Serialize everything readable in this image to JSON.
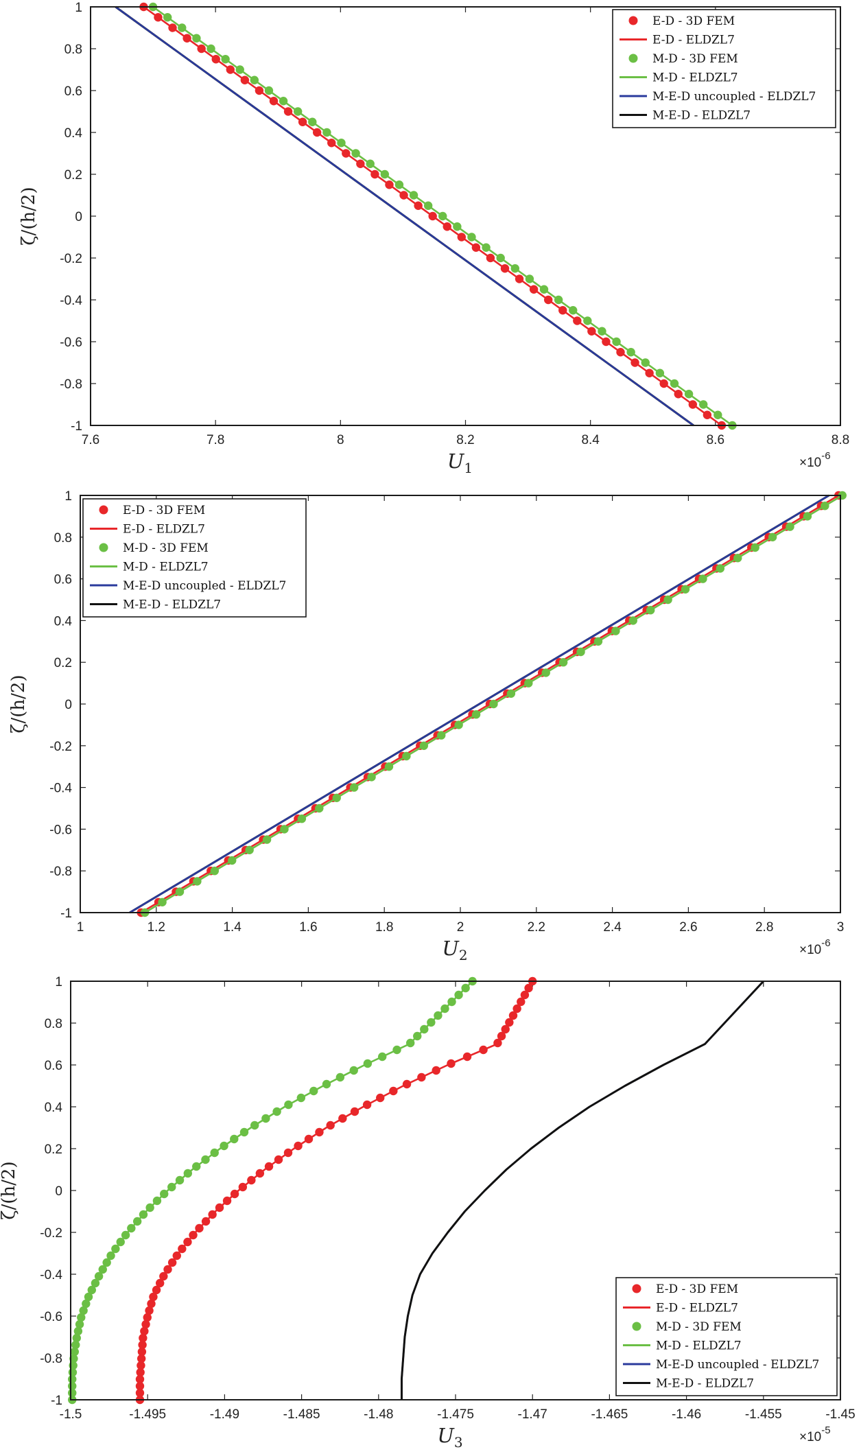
{
  "colors": {
    "ed": "#e8272a",
    "md": "#6bbf45",
    "uncoupled": "#2a3a9c",
    "med": "#111111"
  },
  "chart_data": [
    {
      "type": "line",
      "xlabel": "U",
      "xlabel_sub": "1",
      "ylabel": "ζ/(h/2)",
      "x_multiplier": "×10",
      "x_multiplier_exp": "-6",
      "xlim": [
        7.6,
        8.8
      ],
      "ylim": [
        -1,
        1
      ],
      "xticks": [
        "7.6",
        "7.8",
        "8",
        "8.2",
        "8.4",
        "8.6",
        "8.8"
      ],
      "yticks": [
        "-1",
        "-0.8",
        "-0.6",
        "-0.4",
        "-0.2",
        "0",
        "0.2",
        "0.4",
        "0.6",
        "0.8",
        "1"
      ],
      "legend_position": "top-right",
      "series": [
        {
          "name": "E-D - 3D FEM",
          "kind": "markers",
          "color": "ed",
          "x": [
            8.61,
            7.685
          ],
          "y": [
            -1,
            1
          ],
          "n_markers": 41
        },
        {
          "name": "E-D - ELDZL7",
          "kind": "line",
          "color": "ed",
          "x": [
            8.61,
            7.685
          ],
          "y": [
            -1,
            1
          ]
        },
        {
          "name": "M-D - 3D FEM",
          "kind": "markers",
          "color": "md",
          "x": [
            8.627,
            7.7
          ],
          "y": [
            -1,
            1
          ],
          "n_markers": 41
        },
        {
          "name": "M-D - ELDZL7",
          "kind": "line",
          "color": "md",
          "x": [
            8.627,
            7.7
          ],
          "y": [
            -1,
            1
          ]
        },
        {
          "name": "M-E-D uncoupled - ELDZL7",
          "kind": "line",
          "color": "uncoupled",
          "x": [
            8.565,
            7.64
          ],
          "y": [
            -1,
            1
          ]
        },
        {
          "name": "M-E-D - ELDZL7",
          "kind": "line",
          "color": "med",
          "x": [
            8.565,
            7.64
          ],
          "y": [
            -1,
            1
          ]
        }
      ]
    },
    {
      "type": "line",
      "xlabel": "U",
      "xlabel_sub": "2",
      "ylabel": "ζ/(h/2)",
      "x_multiplier": "×10",
      "x_multiplier_exp": "-6",
      "xlim": [
        1,
        3
      ],
      "ylim": [
        -1,
        1
      ],
      "xticks": [
        "1",
        "1.2",
        "1.4",
        "1.6",
        "1.8",
        "2",
        "2.2",
        "2.4",
        "2.6",
        "2.8",
        "3"
      ],
      "yticks": [
        "-1",
        "-0.8",
        "-0.6",
        "-0.4",
        "-0.2",
        "0",
        "0.2",
        "0.4",
        "0.6",
        "0.8",
        "1"
      ],
      "legend_position": "top-left",
      "series": [
        {
          "name": "E-D - 3D FEM",
          "kind": "markers",
          "color": "ed",
          "x": [
            1.16,
            2.995
          ],
          "y": [
            -1,
            1
          ],
          "n_markers": 41
        },
        {
          "name": "E-D - ELDZL7",
          "kind": "line",
          "color": "ed",
          "x": [
            1.16,
            2.995
          ],
          "y": [
            -1,
            1
          ]
        },
        {
          "name": "M-D - 3D FEM",
          "kind": "markers",
          "color": "md",
          "x": [
            1.17,
            3.005
          ],
          "y": [
            -1,
            1
          ],
          "n_markers": 41
        },
        {
          "name": "M-D - ELDZL7",
          "kind": "line",
          "color": "md",
          "x": [
            1.17,
            3.005
          ],
          "y": [
            -1,
            1
          ]
        },
        {
          "name": "M-E-D uncoupled - ELDZL7",
          "kind": "line",
          "color": "uncoupled",
          "x": [
            1.13,
            2.97
          ],
          "y": [
            -1,
            1
          ]
        },
        {
          "name": "M-E-D - ELDZL7",
          "kind": "line",
          "color": "med",
          "x": [
            1.13,
            2.97
          ],
          "y": [
            -1,
            1
          ]
        }
      ]
    },
    {
      "type": "line",
      "xlabel": "U",
      "xlabel_sub": "3",
      "ylabel": "ζ/(h/2)",
      "x_multiplier": "×10",
      "x_multiplier_exp": "-5",
      "xlim": [
        -1.5,
        -1.45
      ],
      "ylim": [
        -1,
        1
      ],
      "xticks": [
        "-1.5",
        "-1.495",
        "-1.49",
        "-1.485",
        "-1.48",
        "-1.475",
        "-1.47",
        "-1.465",
        "-1.46",
        "-1.455",
        "-1.45"
      ],
      "yticks": [
        "-1",
        "-0.8",
        "-0.6",
        "-0.4",
        "-0.2",
        "0",
        "0.2",
        "0.4",
        "0.6",
        "0.8",
        "1"
      ],
      "legend_position": "bottom-right",
      "series": [
        {
          "name": "E-D - 3D FEM",
          "kind": "markers",
          "color": "ed",
          "x": [
            -1.4955,
            -1.4955,
            -1.4954,
            -1.4953,
            -1.495,
            -1.4946,
            -1.4939,
            -1.493,
            -1.4919,
            -1.4906,
            -1.4891,
            -1.4874,
            -1.4855,
            -1.4834,
            -1.481,
            -1.4784,
            -1.4755,
            -1.4723,
            -1.47
          ],
          "y": [
            -1,
            -0.9,
            -0.8,
            -0.7,
            -0.6,
            -0.5,
            -0.4,
            -0.3,
            -0.2,
            -0.1,
            0,
            0.1,
            0.2,
            0.3,
            0.4,
            0.5,
            0.6,
            0.7,
            1
          ],
          "n_markers": 62
        },
        {
          "name": "E-D - ELDZL7",
          "kind": "line",
          "color": "ed",
          "x": [
            -1.4955,
            -1.4955,
            -1.4954,
            -1.4953,
            -1.495,
            -1.4946,
            -1.4939,
            -1.493,
            -1.4919,
            -1.4906,
            -1.4891,
            -1.4874,
            -1.4855,
            -1.4834,
            -1.481,
            -1.4784,
            -1.4755,
            -1.4723,
            -1.47
          ],
          "y": [
            -1,
            -0.9,
            -0.8,
            -0.7,
            -0.6,
            -0.5,
            -0.4,
            -0.3,
            -0.2,
            -0.1,
            0,
            0.1,
            0.2,
            0.3,
            0.4,
            0.5,
            0.6,
            0.7,
            1
          ]
        },
        {
          "name": "M-D - 3D FEM",
          "kind": "markers",
          "color": "md",
          "x": [
            -1.4999,
            -1.4999,
            -1.4998,
            -1.4996,
            -1.4993,
            -1.4988,
            -1.4981,
            -1.4973,
            -1.4963,
            -1.4951,
            -1.4937,
            -1.4921,
            -1.4903,
            -1.4883,
            -1.4861,
            -1.4836,
            -1.4809,
            -1.478,
            -1.4739
          ],
          "y": [
            -1,
            -0.9,
            -0.8,
            -0.7,
            -0.6,
            -0.5,
            -0.4,
            -0.3,
            -0.2,
            -0.1,
            0,
            0.1,
            0.2,
            0.3,
            0.4,
            0.5,
            0.6,
            0.7,
            1
          ],
          "n_markers": 62
        },
        {
          "name": "M-D - ELDZL7",
          "kind": "line",
          "color": "md",
          "x": [
            -1.4999,
            -1.4999,
            -1.4998,
            -1.4996,
            -1.4993,
            -1.4988,
            -1.4981,
            -1.4973,
            -1.4963,
            -1.4951,
            -1.4937,
            -1.4921,
            -1.4903,
            -1.4883,
            -1.4861,
            -1.4836,
            -1.4809,
            -1.478,
            -1.4739
          ],
          "y": [
            -1,
            -0.9,
            -0.8,
            -0.7,
            -0.6,
            -0.5,
            -0.4,
            -0.3,
            -0.2,
            -0.1,
            0,
            0.1,
            0.2,
            0.3,
            0.4,
            0.5,
            0.6,
            0.7,
            1
          ]
        },
        {
          "name": "M-E-D uncoupled - ELDZL7",
          "kind": "line",
          "color": "uncoupled",
          "x": [
            -1.4785,
            -1.4785,
            -1.4784,
            -1.4783,
            -1.4781,
            -1.4778,
            -1.4773,
            -1.4765,
            -1.4755,
            -1.4744,
            -1.4731,
            -1.4717,
            -1.4701,
            -1.4683,
            -1.4663,
            -1.464,
            -1.4615,
            -1.4588,
            -1.455
          ],
          "y": [
            -1,
            -0.9,
            -0.8,
            -0.7,
            -0.6,
            -0.5,
            -0.4,
            -0.3,
            -0.2,
            -0.1,
            0,
            0.1,
            0.2,
            0.3,
            0.4,
            0.5,
            0.6,
            0.7,
            1
          ]
        },
        {
          "name": "M-E-D - ELDZL7",
          "kind": "line",
          "color": "med",
          "x": [
            -1.4785,
            -1.4785,
            -1.4784,
            -1.4783,
            -1.4781,
            -1.4778,
            -1.4773,
            -1.4765,
            -1.4755,
            -1.4744,
            -1.4731,
            -1.4717,
            -1.4701,
            -1.4683,
            -1.4663,
            -1.464,
            -1.4615,
            -1.4588,
            -1.455
          ],
          "y": [
            -1,
            -0.9,
            -0.8,
            -0.7,
            -0.6,
            -0.5,
            -0.4,
            -0.3,
            -0.2,
            -0.1,
            0,
            0.1,
            0.2,
            0.3,
            0.4,
            0.5,
            0.6,
            0.7,
            1
          ]
        }
      ]
    }
  ]
}
